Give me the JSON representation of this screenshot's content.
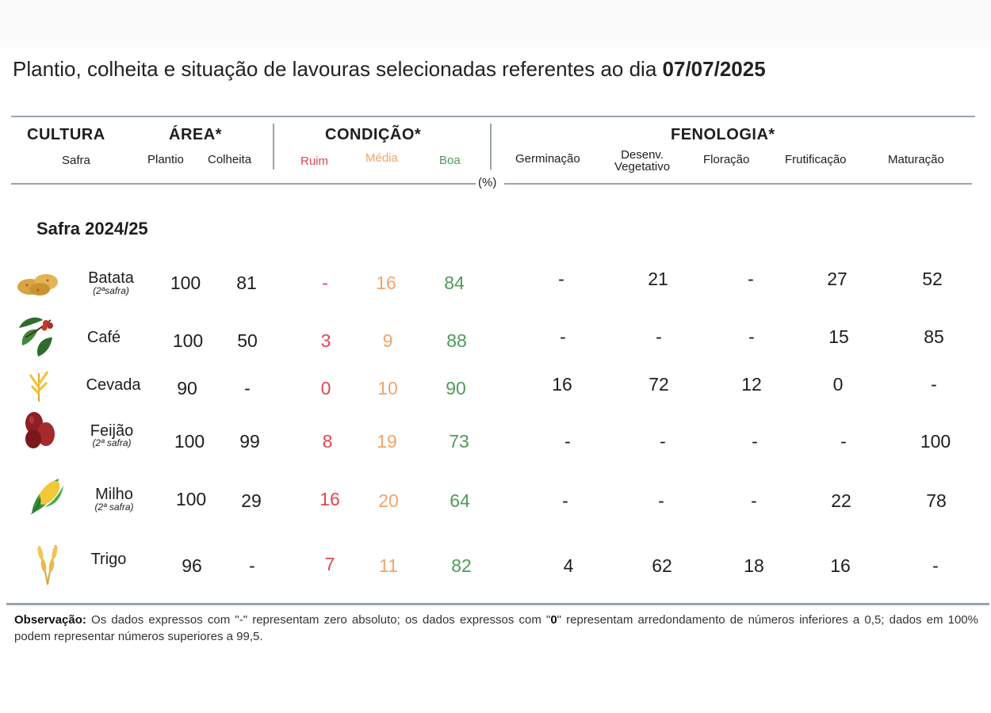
{
  "title": {
    "text": "Plantio, colheita e situação de lavouras selecionadas referentes ao dia ",
    "date": "07/07/2025"
  },
  "headers": {
    "cultura": "CULTURA",
    "safra": "Safra",
    "area": "ÁREA*",
    "plantio": "Plantio",
    "colheita": "Colheita",
    "condicao": "CONDIÇÃO*",
    "ruim": "Ruim",
    "media": "Média",
    "boa": "Boa",
    "fenologia": "FENOLOGIA*",
    "germinacao": "Germinação",
    "desenv1": "Desenv.",
    "desenv2": "Vegetativo",
    "floracao": "Floração",
    "frutificacao": "Frutificação",
    "maturacao": "Maturação",
    "unit": "(%)"
  },
  "section": "Safra 2024/25",
  "rows": [
    {
      "name": "Batata",
      "sub": "(2ªsafra)",
      "icon": "potato-icon",
      "plantio": "100",
      "colheita": "81",
      "ruim": "-",
      "media": "16",
      "boa": "84",
      "germinacao": "-",
      "desenv": "21",
      "floracao": "-",
      "frutificacao": "27",
      "maturacao": "52"
    },
    {
      "name": "Café",
      "sub": "",
      "icon": "coffee-icon",
      "plantio": "100",
      "colheita": "50",
      "ruim": "3",
      "media": "9",
      "boa": "88",
      "germinacao": "-",
      "desenv": "-",
      "floracao": "-",
      "frutificacao": "15",
      "maturacao": "85"
    },
    {
      "name": "Cevada",
      "sub": "",
      "icon": "barley-icon",
      "plantio": "90",
      "colheita": "-",
      "ruim": "0",
      "media": "10",
      "boa": "90",
      "germinacao": "16",
      "desenv": "72",
      "floracao": "12",
      "frutificacao": "0",
      "maturacao": "-"
    },
    {
      "name": "Feijão",
      "sub": "(2ª safra)",
      "icon": "bean-icon",
      "plantio": "100",
      "colheita": "99",
      "ruim": "8",
      "media": "19",
      "boa": "73",
      "germinacao": "-",
      "desenv": "-",
      "floracao": "-",
      "frutificacao": "-",
      "maturacao": "100"
    },
    {
      "name": "Milho",
      "sub": "(2ª safra)",
      "icon": "corn-icon",
      "plantio": "100",
      "colheita": "29",
      "ruim": "16",
      "media": "20",
      "boa": "64",
      "germinacao": "-",
      "desenv": "-",
      "floracao": "-",
      "frutificacao": "22",
      "maturacao": "78"
    },
    {
      "name": "Trigo",
      "sub": "",
      "icon": "wheat-icon",
      "plantio": "96",
      "colheita": "-",
      "ruim": "7",
      "media": "11",
      "boa": "82",
      "germinacao": "4",
      "desenv": "62",
      "floracao": "18",
      "frutificacao": "16",
      "maturacao": "-"
    }
  ],
  "note": {
    "label": "Observação:",
    "t1": " Os dados expressos com \"-\" representam zero absoluto; os dados expressos com \"",
    "zero": "0",
    "t2": "\" representam arredondamento de números inferiores a 0,5; dados em 100% podem representar números superiores a 99,5."
  },
  "colors": {
    "ruim": "#e0474c",
    "media": "#f0a46a",
    "boa": "#4e9a5a",
    "rule": "#9aa4ad"
  }
}
